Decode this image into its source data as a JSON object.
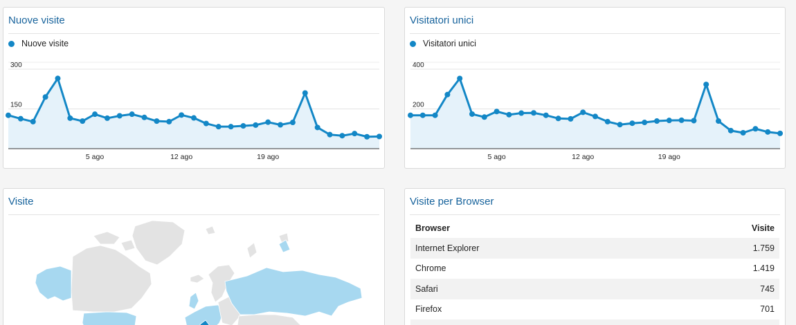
{
  "colors": {
    "accent": "#1387c6",
    "fill": "#e5f2fa",
    "title": "#17639c",
    "map_base": "#e3e3e3",
    "map_visited": "#a7d8f0",
    "map_top": "#1387c6"
  },
  "panels": {
    "new_visits": {
      "title": "Nuove visite"
    },
    "unique_visitors": {
      "title": "Visitatori unici"
    },
    "visits_map": {
      "title": "Visite"
    },
    "browsers": {
      "title": "Visite per Browser"
    }
  },
  "browser_table": {
    "headers": {
      "browser": "Browser",
      "visits": "Visite"
    },
    "rows": [
      {
        "browser": "Internet Explorer",
        "visits": "1.759"
      },
      {
        "browser": "Chrome",
        "visits": "1.419"
      },
      {
        "browser": "Safari",
        "visits": "745"
      },
      {
        "browser": "Firefox",
        "visits": "701"
      }
    ]
  },
  "chart_data": [
    {
      "type": "area",
      "legend": "Nuove visite",
      "x_tick_labels": [
        "5 ago",
        "12 ago",
        "19 ago"
      ],
      "x_tick_index": [
        7,
        14,
        21
      ],
      "y_ticks": [
        150,
        300
      ],
      "ylim": [
        0,
        300
      ],
      "grid": true,
      "series": [
        {
          "name": "Nuove visite",
          "values": [
            126,
            113,
            102,
            195,
            265,
            115,
            104,
            130,
            115,
            124,
            130,
            118,
            104,
            102,
            127,
            116,
            95,
            83,
            83,
            86,
            89,
            100,
            90,
            99,
            210,
            80,
            53,
            49,
            57,
            45,
            46
          ]
        }
      ]
    },
    {
      "type": "area",
      "legend": "Visitatori unici",
      "x_tick_labels": [
        "5 ago",
        "12 ago",
        "19 ago"
      ],
      "x_tick_index": [
        7,
        14,
        21
      ],
      "y_ticks": [
        200,
        400
      ],
      "ylim": [
        0,
        400
      ],
      "grid": true,
      "series": [
        {
          "name": "Visitatori unici",
          "values": [
            168,
            168,
            168,
            272,
            353,
            174,
            159,
            187,
            171,
            179,
            180,
            168,
            152,
            150,
            183,
            162,
            136,
            121,
            128,
            132,
            139,
            142,
            143,
            141,
            323,
            139,
            91,
            80,
            100,
            84,
            77
          ]
        }
      ]
    }
  ]
}
